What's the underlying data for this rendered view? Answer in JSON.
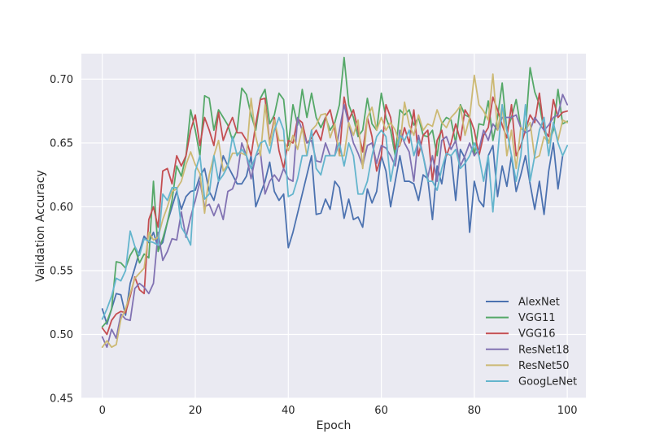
{
  "chart_data": {
    "type": "line",
    "xlabel": "Epoch",
    "ylabel": "Validation Accuracy",
    "xlim": [
      -4.5,
      104
    ],
    "ylim": [
      0.45,
      0.72
    ],
    "xticks": [
      0,
      20,
      40,
      60,
      80,
      100
    ],
    "yticks": [
      0.45,
      0.5,
      0.55,
      0.6,
      0.65,
      0.7
    ],
    "grid": true,
    "legend_position": "lower-right",
    "series": [
      {
        "name": "AlexNet",
        "color": "#4c72b0",
        "values": [
          0.52,
          0.508,
          0.52,
          0.532,
          0.531,
          0.515,
          0.54,
          0.552,
          0.565,
          0.577,
          0.572,
          0.58,
          0.568,
          0.572,
          0.588,
          0.6,
          0.612,
          0.598,
          0.608,
          0.612,
          0.613,
          0.624,
          0.63,
          0.612,
          0.605,
          0.62,
          0.64,
          0.632,
          0.625,
          0.618,
          0.618,
          0.624,
          0.64,
          0.6,
          0.61,
          0.62,
          0.635,
          0.612,
          0.605,
          0.61,
          0.568,
          0.58,
          0.595,
          0.61,
          0.625,
          0.64,
          0.594,
          0.595,
          0.606,
          0.598,
          0.62,
          0.615,
          0.591,
          0.606,
          0.59,
          0.592,
          0.584,
          0.614,
          0.603,
          0.612,
          0.64,
          0.628,
          0.6,
          0.62,
          0.64,
          0.62,
          0.62,
          0.618,
          0.605,
          0.625,
          0.622,
          0.59,
          0.632,
          0.618,
          0.642,
          0.64,
          0.605,
          0.645,
          0.638,
          0.58,
          0.62,
          0.605,
          0.6,
          0.64,
          0.648,
          0.608,
          0.632,
          0.616,
          0.64,
          0.612,
          0.625,
          0.64,
          0.618,
          0.598,
          0.62,
          0.594,
          0.628,
          0.65,
          0.614,
          0.64
        ]
      },
      {
        "name": "VGG11",
        "color": "#55a868",
        "values": [
          0.506,
          0.51,
          0.52,
          0.557,
          0.556,
          0.552,
          0.562,
          0.568,
          0.556,
          0.563,
          0.56,
          0.62,
          0.565,
          0.575,
          0.588,
          0.605,
          0.632,
          0.624,
          0.64,
          0.676,
          0.66,
          0.64,
          0.687,
          0.685,
          0.66,
          0.676,
          0.67,
          0.664,
          0.652,
          0.66,
          0.693,
          0.688,
          0.672,
          0.66,
          0.685,
          0.692,
          0.665,
          0.672,
          0.689,
          0.684,
          0.648,
          0.68,
          0.664,
          0.692,
          0.67,
          0.689,
          0.67,
          0.662,
          0.67,
          0.66,
          0.666,
          0.68,
          0.717,
          0.68,
          0.67,
          0.655,
          0.66,
          0.685,
          0.665,
          0.66,
          0.689,
          0.67,
          0.66,
          0.64,
          0.676,
          0.672,
          0.676,
          0.664,
          0.67,
          0.656,
          0.655,
          0.66,
          0.64,
          0.665,
          0.67,
          0.668,
          0.65,
          0.68,
          0.672,
          0.67,
          0.64,
          0.665,
          0.664,
          0.683,
          0.652,
          0.67,
          0.697,
          0.66,
          0.67,
          0.684,
          0.662,
          0.66,
          0.709,
          0.69,
          0.68,
          0.66,
          0.65,
          0.66,
          0.692,
          0.665,
          0.667
        ]
      },
      {
        "name": "VGG16",
        "color": "#c44e52",
        "values": [
          0.505,
          0.5,
          0.511,
          0.516,
          0.518,
          0.517,
          0.53,
          0.545,
          0.535,
          0.532,
          0.59,
          0.6,
          0.584,
          0.628,
          0.63,
          0.618,
          0.64,
          0.632,
          0.64,
          0.66,
          0.672,
          0.648,
          0.67,
          0.66,
          0.648,
          0.674,
          0.652,
          0.662,
          0.67,
          0.658,
          0.658,
          0.652,
          0.64,
          0.665,
          0.684,
          0.685,
          0.65,
          0.67,
          0.644,
          0.63,
          0.652,
          0.65,
          0.669,
          0.666,
          0.65,
          0.654,
          0.66,
          0.652,
          0.67,
          0.676,
          0.66,
          0.64,
          0.686,
          0.668,
          0.676,
          0.66,
          0.643,
          0.67,
          0.655,
          0.628,
          0.64,
          0.68,
          0.67,
          0.645,
          0.648,
          0.662,
          0.65,
          0.676,
          0.64,
          0.656,
          0.66,
          0.62,
          0.652,
          0.66,
          0.64,
          0.65,
          0.665,
          0.652,
          0.676,
          0.67,
          0.66,
          0.64,
          0.656,
          0.662,
          0.686,
          0.676,
          0.664,
          0.654,
          0.68,
          0.64,
          0.648,
          0.66,
          0.672,
          0.666,
          0.689,
          0.66,
          0.655,
          0.684,
          0.67,
          0.674,
          0.675
        ]
      },
      {
        "name": "ResNet18",
        "color": "#8172b2",
        "values": [
          0.498,
          0.49,
          0.504,
          0.497,
          0.516,
          0.512,
          0.511,
          0.536,
          0.54,
          0.537,
          0.532,
          0.54,
          0.58,
          0.558,
          0.565,
          0.575,
          0.574,
          0.596,
          0.576,
          0.592,
          0.605,
          0.62,
          0.6,
          0.602,
          0.593,
          0.602,
          0.59,
          0.612,
          0.614,
          0.624,
          0.65,
          0.64,
          0.622,
          0.64,
          0.643,
          0.61,
          0.62,
          0.625,
          0.62,
          0.63,
          0.622,
          0.62,
          0.67,
          0.66,
          0.65,
          0.652,
          0.636,
          0.635,
          0.65,
          0.64,
          0.64,
          0.66,
          0.68,
          0.665,
          0.65,
          0.642,
          0.632,
          0.648,
          0.65,
          0.634,
          0.648,
          0.646,
          0.64,
          0.632,
          0.66,
          0.65,
          0.643,
          0.62,
          0.656,
          0.64,
          0.623,
          0.64,
          0.62,
          0.652,
          0.655,
          0.645,
          0.652,
          0.632,
          0.64,
          0.65,
          0.64,
          0.645,
          0.66,
          0.652,
          0.665,
          0.66,
          0.67,
          0.67,
          0.67,
          0.672,
          0.662,
          0.658,
          0.66,
          0.67,
          0.665,
          0.66,
          0.664,
          0.67,
          0.672,
          0.688,
          0.68
        ]
      },
      {
        "name": "ResNet50",
        "color": "#ccb974",
        "values": [
          0.49,
          0.495,
          0.49,
          0.492,
          0.512,
          0.52,
          0.532,
          0.544,
          0.548,
          0.552,
          0.58,
          0.574,
          0.576,
          0.59,
          0.6,
          0.612,
          0.614,
          0.62,
          0.633,
          0.643,
          0.633,
          0.626,
          0.595,
          0.625,
          0.64,
          0.652,
          0.628,
          0.633,
          0.642,
          0.642,
          0.642,
          0.64,
          0.685,
          0.655,
          0.64,
          0.68,
          0.648,
          0.668,
          0.652,
          0.652,
          0.644,
          0.656,
          0.645,
          0.662,
          0.64,
          0.66,
          0.664,
          0.672,
          0.673,
          0.654,
          0.665,
          0.64,
          0.64,
          0.666,
          0.656,
          0.668,
          0.63,
          0.67,
          0.678,
          0.66,
          0.67,
          0.66,
          0.666,
          0.66,
          0.648,
          0.682,
          0.664,
          0.656,
          0.672,
          0.66,
          0.665,
          0.663,
          0.676,
          0.666,
          0.662,
          0.67,
          0.674,
          0.679,
          0.656,
          0.67,
          0.703,
          0.68,
          0.675,
          0.668,
          0.704,
          0.66,
          0.68,
          0.64,
          0.66,
          0.63,
          0.662,
          0.66,
          0.666,
          0.638,
          0.64,
          0.655,
          0.65,
          0.665,
          0.652,
          0.668,
          0.666
        ]
      },
      {
        "name": "GoogLeNet",
        "color": "#64b5cd",
        "values": [
          0.512,
          0.52,
          0.53,
          0.544,
          0.542,
          0.55,
          0.581,
          0.569,
          0.562,
          0.575,
          0.573,
          0.572,
          0.57,
          0.61,
          0.605,
          0.615,
          0.615,
          0.584,
          0.578,
          0.57,
          0.628,
          0.64,
          0.606,
          0.61,
          0.64,
          0.62,
          0.625,
          0.632,
          0.655,
          0.64,
          0.645,
          0.64,
          0.63,
          0.64,
          0.65,
          0.652,
          0.642,
          0.66,
          0.67,
          0.66,
          0.608,
          0.61,
          0.622,
          0.64,
          0.64,
          0.66,
          0.63,
          0.625,
          0.64,
          0.64,
          0.64,
          0.65,
          0.632,
          0.65,
          0.64,
          0.61,
          0.61,
          0.62,
          0.64,
          0.655,
          0.66,
          0.655,
          0.62,
          0.64,
          0.656,
          0.652,
          0.66,
          0.64,
          0.652,
          0.64,
          0.62,
          0.62,
          0.613,
          0.63,
          0.642,
          0.64,
          0.645,
          0.63,
          0.634,
          0.64,
          0.65,
          0.64,
          0.62,
          0.64,
          0.596,
          0.64,
          0.68,
          0.66,
          0.64,
          0.62,
          0.64,
          0.68,
          0.62,
          0.64,
          0.66,
          0.67,
          0.64,
          0.666,
          0.65,
          0.64,
          0.648
        ]
      }
    ]
  }
}
